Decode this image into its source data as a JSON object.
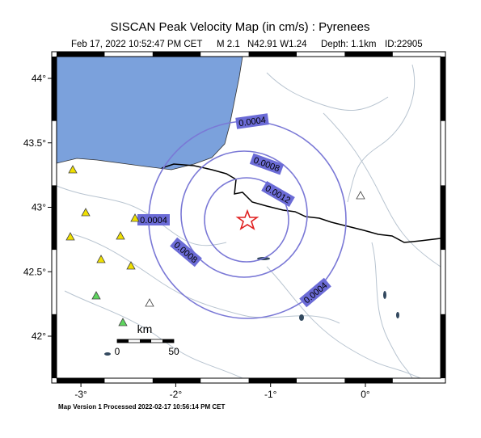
{
  "title": "SISCAN Peak Velocity Map (in cm/s) : Pyrenees",
  "subtitle": {
    "date": "Feb 17, 2022 10:52:47 PM CET",
    "magnitude": "M 2.1",
    "location": "N42.91 W1.24",
    "depth": "Depth: 1.1km",
    "id": "ID:22905"
  },
  "map": {
    "lon_ticks": [
      {
        "value": -3,
        "label": "-3°"
      },
      {
        "value": -2,
        "label": "-2°"
      },
      {
        "value": -1,
        "label": "-1°"
      },
      {
        "value": 0,
        "label": "0°"
      }
    ],
    "lat_ticks": [
      {
        "value": 44,
        "label": "44°"
      },
      {
        "value": 43.5,
        "label": "43.5°"
      },
      {
        "value": 43,
        "label": "43°"
      },
      {
        "value": 42.5,
        "label": "42.5°"
      },
      {
        "value": 42,
        "label": "42°"
      }
    ],
    "contour_labels": [
      "0.0004",
      "0.0008",
      "0.0012",
      "0.0004",
      "0.0008",
      "0.0004"
    ],
    "scale": {
      "title": "km",
      "start": "0",
      "end": "50"
    }
  },
  "footer": "Map Version 1 Processed 2022-02-17 10:56:14 PM CET"
}
